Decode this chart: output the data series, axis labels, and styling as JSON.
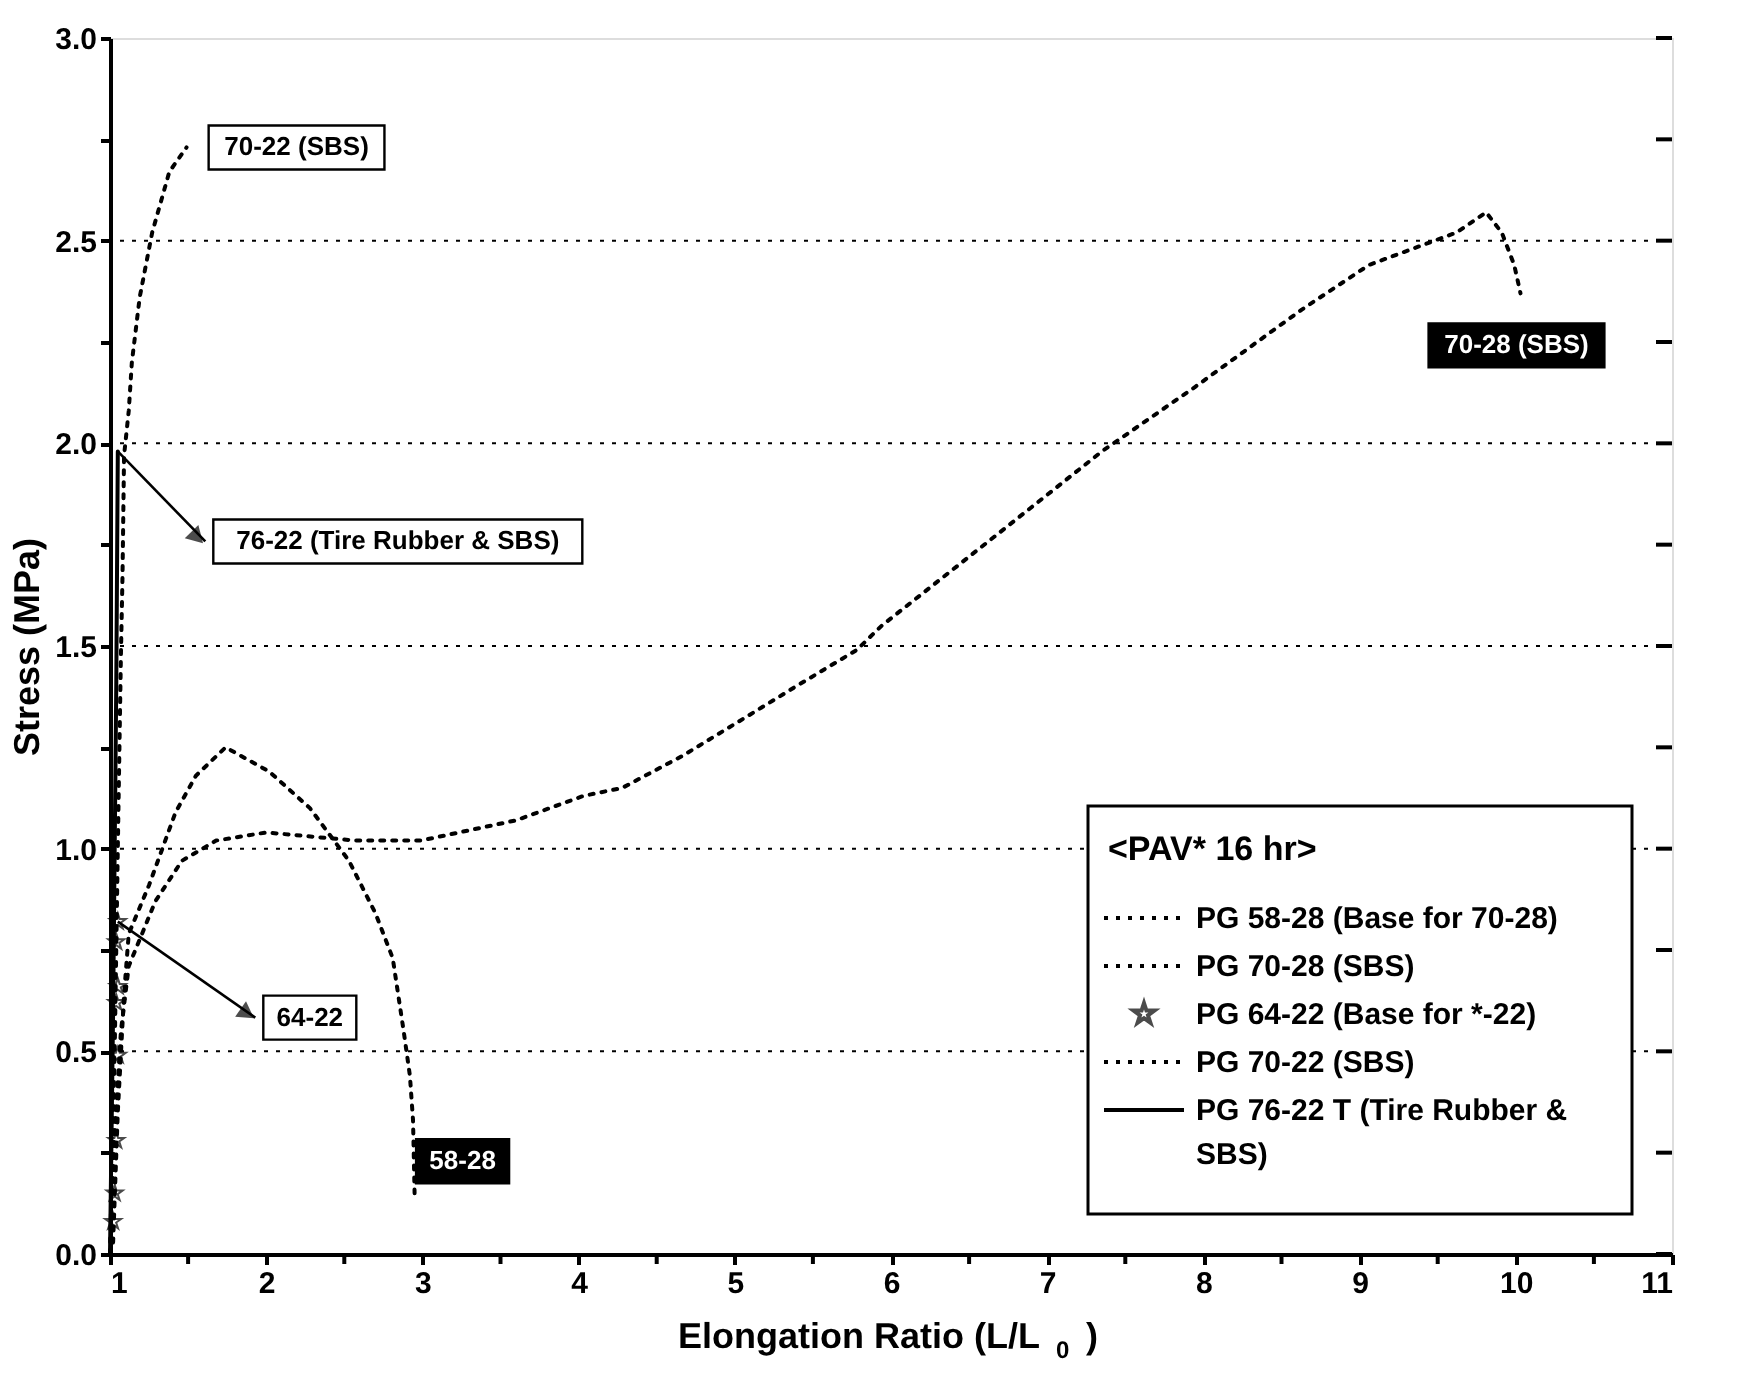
{
  "chart_data": {
    "type": "line",
    "xlabel": "Elongation Ratio (L/L$_{0}$)",
    "ylabel": "Stress (MPa)",
    "legend_title": "<PAV* 16 hr>",
    "legend": "bottom right",
    "grid": "y",
    "xlim": [
      1,
      11
    ],
    "ylim": [
      0,
      3
    ],
    "xticks": [
      1,
      {
        "value": 1.5,
        "label": null
      },
      2,
      {
        "value": 2.5,
        "label": null
      },
      3,
      {
        "value": 3.5,
        "label": null
      },
      4,
      {
        "value": 4.5,
        "label": null
      },
      5,
      {
        "value": 5.5,
        "label": null
      },
      6,
      {
        "value": 6.5,
        "label": null
      },
      7,
      {
        "value": 7.5,
        "label": null
      },
      8,
      {
        "value": 8.5,
        "label": null
      },
      9,
      {
        "value": 9.5,
        "label": null
      },
      10,
      {
        "value": 10.5,
        "label": null
      },
      11
    ],
    "yticks": [
      {
        "value": 0,
        "label": "0.0"
      },
      {
        "value": 0.25,
        "label": null
      },
      {
        "value": 0.5,
        "label": "0.5"
      },
      {
        "value": 0.75,
        "label": null
      },
      {
        "value": 1,
        "label": "1.0"
      },
      {
        "value": 1.25,
        "label": null
      },
      {
        "value": 1.5,
        "label": "1.5"
      },
      {
        "value": 1.75,
        "label": null
      },
      {
        "value": 2,
        "label": "2.0"
      },
      {
        "value": 2.25,
        "label": null
      },
      {
        "value": 2.5,
        "label": "2.5"
      },
      {
        "value": 2.75,
        "label": null
      },
      {
        "value": 3,
        "label": "3.0"
      }
    ],
    "series": [
      {
        "name": "PG 58-28 (Base for 70-28)",
        "line_style": "dotted",
        "color": "#000000",
        "x": [
          1.0,
          1.02,
          1.05,
          1.09,
          1.12,
          1.25,
          1.42,
          1.55,
          1.74,
          2.02,
          2.28,
          2.53,
          2.7,
          2.81,
          2.88,
          2.92,
          2.94,
          2.95
        ],
        "values": [
          0,
          0.03,
          0.35,
          0.64,
          0.79,
          0.91,
          1.09,
          1.18,
          1.25,
          1.19,
          1.1,
          0.97,
          0.84,
          0.73,
          0.55,
          0.44,
          0.33,
          0.15
        ]
      },
      {
        "name": "PG 70-28 (SBS)",
        "line_style": "dotted",
        "color": "#000000",
        "x": [
          1.0,
          1.03,
          1.07,
          1.12,
          1.29,
          1.46,
          1.68,
          2.0,
          2.57,
          2.99,
          3.6,
          4.03,
          4.28,
          4.67,
          5.01,
          5.39,
          5.78,
          5.94,
          6.63,
          7.35,
          7.95,
          8.63,
          9.06,
          9.62,
          9.81,
          9.91,
          9.99,
          10.03
        ],
        "values": [
          0,
          0.3,
          0.55,
          0.71,
          0.87,
          0.97,
          1.02,
          1.04,
          1.02,
          1.02,
          1.07,
          1.13,
          1.15,
          1.23,
          1.31,
          1.4,
          1.49,
          1.55,
          1.76,
          1.98,
          2.14,
          2.33,
          2.44,
          2.52,
          2.57,
          2.52,
          2.44,
          2.37
        ]
      },
      {
        "name": "PG 64-22 (Base for *-22)",
        "type": "scatter",
        "marker": "star",
        "color": "#000000",
        "x": [
          1.02,
          1.03,
          1.04,
          1.05,
          1.04,
          1.05,
          1.04,
          1.05
        ],
        "values": [
          0.08,
          0.15,
          0.28,
          0.49,
          0.62,
          0.66,
          0.77,
          0.82
        ]
      },
      {
        "name": "PG 70-22 (SBS)",
        "line_style": "dotted",
        "color": "#000000",
        "x": [
          1.0,
          1.03,
          1.05,
          1.07,
          1.08,
          1.09,
          1.12,
          1.14,
          1.19,
          1.27,
          1.38,
          1.49
        ],
        "values": [
          0,
          0.5,
          1.0,
          1.48,
          1.67,
          1.97,
          2.08,
          2.2,
          2.36,
          2.52,
          2.67,
          2.73
        ]
      },
      {
        "name": "PG 76-22 T (Tire Rubber & SBS)",
        "line_style": "solid",
        "color": "#000000",
        "x": [
          1.0,
          1.02,
          1.04,
          1.05
        ],
        "values": [
          0,
          0.6,
          1.4,
          1.98
        ]
      }
    ],
    "annotations": [
      {
        "text": "70-22 (SBS)",
        "x": 1.49,
        "y": 2.73
      },
      {
        "text": "76-22 (Tire Rubber & SBS)",
        "x": 1.05,
        "y": 1.98
      },
      {
        "text": "64-22",
        "x": 1.05,
        "y": 0.82
      },
      {
        "text": "58-28",
        "x": 2.95,
        "y": 0.15
      },
      {
        "text": "70-28 (SBS)",
        "x": 10.03,
        "y": 2.37
      }
    ]
  }
}
